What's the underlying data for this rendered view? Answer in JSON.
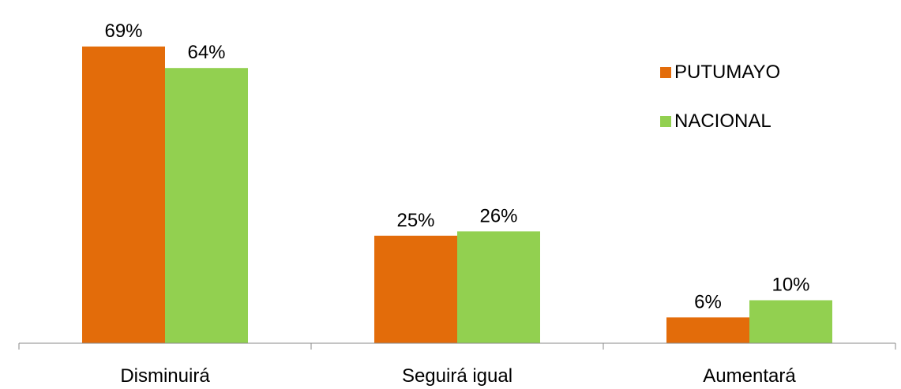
{
  "chart_data": {
    "type": "bar",
    "categories": [
      "Disminuirá",
      "Seguirá igual",
      "Aumentará"
    ],
    "series": [
      {
        "name": "PUTUMAYO",
        "values": [
          69,
          25,
          6
        ],
        "labels": [
          "69%",
          "25%",
          "6%"
        ],
        "color": "#E36C0A"
      },
      {
        "name": "NACIONAL",
        "values": [
          64,
          26,
          10
        ],
        "labels": [
          "64%",
          "26%",
          "10%"
        ],
        "color": "#92D050"
      }
    ],
    "title": "",
    "xlabel": "",
    "ylabel": "",
    "ylim": [
      0,
      75
    ],
    "grid": false,
    "legend_position": "top-right"
  }
}
